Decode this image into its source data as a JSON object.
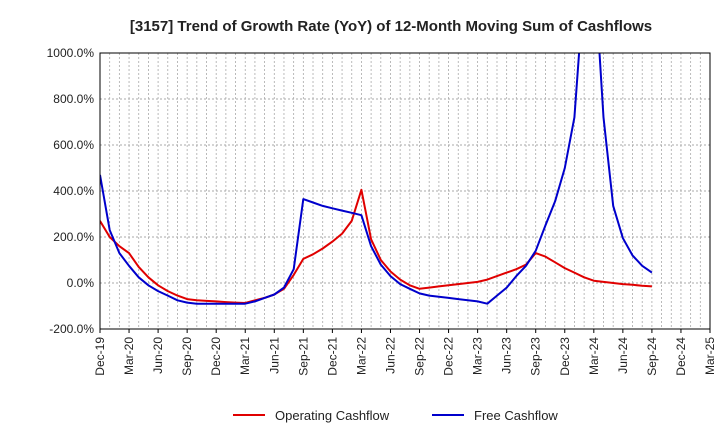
{
  "chart_data": {
    "type": "line",
    "title": "[3157]  Trend of Growth Rate (YoY) of 12-Month Moving Sum of Cashflows",
    "xlabel": "",
    "ylabel": "",
    "ylim": [
      -200,
      1000
    ],
    "y_ticks": [
      "1000.0%",
      "800.0%",
      "600.0%",
      "400.0%",
      "200.0%",
      "0.0%",
      "-200.0%"
    ],
    "y_tick_values": [
      1000,
      800,
      600,
      400,
      200,
      0,
      -200
    ],
    "x_ticks": [
      "Dec-19",
      "Mar-20",
      "Jun-20",
      "Sep-20",
      "Dec-20",
      "Mar-21",
      "Jun-21",
      "Sep-21",
      "Dec-21",
      "Mar-22",
      "Jun-22",
      "Sep-22",
      "Dec-22",
      "Mar-23",
      "Jun-23",
      "Sep-23",
      "Dec-23",
      "Mar-24",
      "Jun-24",
      "Sep-24",
      "Dec-24",
      "Mar-25"
    ],
    "x_start": "Dec-19",
    "x_end": "Mar-25",
    "grid": true,
    "legend_position": "bottom",
    "colors": {
      "operating": "#e00000",
      "free": "#0000cc",
      "grid": "#aaaaaa",
      "axis": "#000000"
    },
    "series": [
      {
        "name": "Operating Cashflow",
        "color": "#e00000",
        "x": [
          "Dec-19",
          "Jan-20",
          "Feb-20",
          "Mar-20",
          "Apr-20",
          "May-20",
          "Jun-20",
          "Jul-20",
          "Aug-20",
          "Sep-20",
          "Oct-20",
          "Nov-20",
          "Dec-20",
          "Jan-21",
          "Feb-21",
          "Mar-21",
          "Apr-21",
          "May-21",
          "Jun-21",
          "Jul-21",
          "Aug-21",
          "Sep-21",
          "Oct-21",
          "Nov-21",
          "Dec-21",
          "Jan-22",
          "Feb-22",
          "Mar-22",
          "Apr-22",
          "May-22",
          "Jun-22",
          "Jul-22",
          "Aug-22",
          "Sep-22",
          "Oct-22",
          "Nov-22",
          "Dec-22",
          "Jan-23",
          "Feb-23",
          "Mar-23",
          "Apr-23",
          "May-23",
          "Jun-23",
          "Jul-23",
          "Aug-23",
          "Sep-23",
          "Oct-23",
          "Nov-23",
          "Dec-23",
          "Jan-24",
          "Feb-24",
          "Mar-24",
          "Apr-24",
          "May-24",
          "Jun-24",
          "Jul-24",
          "Aug-24",
          "Sep-24"
        ],
        "y": [
          270,
          200,
          160,
          130,
          70,
          25,
          -10,
          -35,
          -55,
          -70,
          -75,
          -78,
          -80,
          -83,
          -85,
          -87,
          -75,
          -65,
          -50,
          -25,
          35,
          105,
          125,
          150,
          180,
          215,
          270,
          405,
          190,
          100,
          50,
          15,
          -10,
          -25,
          -20,
          -15,
          -10,
          -5,
          0,
          5,
          15,
          30,
          45,
          60,
          80,
          130,
          115,
          90,
          65,
          45,
          25,
          10,
          5,
          0,
          -5,
          -8,
          -12,
          -15
        ]
      },
      {
        "name": "Free Cashflow",
        "color": "#0000cc",
        "x": [
          "Dec-19",
          "Jan-20",
          "Feb-20",
          "Mar-20",
          "Apr-20",
          "May-20",
          "Jun-20",
          "Jul-20",
          "Aug-20",
          "Sep-20",
          "Oct-20",
          "Nov-20",
          "Dec-20",
          "Jan-21",
          "Feb-21",
          "Mar-21",
          "Apr-21",
          "May-21",
          "Jun-21",
          "Jul-21",
          "Aug-21",
          "Sep-21",
          "Oct-21",
          "Nov-21",
          "Dec-21",
          "Jan-22",
          "Feb-22",
          "Mar-22",
          "Apr-22",
          "May-22",
          "Jun-22",
          "Jul-22",
          "Aug-22",
          "Sep-22",
          "Oct-22",
          "Nov-22",
          "Dec-22",
          "Jan-23",
          "Feb-23",
          "Mar-23",
          "Apr-23",
          "May-23",
          "Jun-23",
          "Jul-23",
          "Aug-23",
          "Sep-23",
          "Oct-23",
          "Nov-23",
          "Dec-23",
          "Jan-24",
          "Feb-24",
          "Mar-24",
          "Apr-24",
          "May-24",
          "Jun-24",
          "Jul-24",
          "Aug-24",
          "Sep-24"
        ],
        "y": [
          470,
          230,
          130,
          75,
          25,
          -10,
          -35,
          -55,
          -75,
          -85,
          -90,
          -90,
          -90,
          -90,
          -90,
          -90,
          -80,
          -65,
          -50,
          -20,
          60,
          365,
          350,
          335,
          325,
          315,
          305,
          295,
          160,
          80,
          30,
          -5,
          -25,
          -45,
          -55,
          -60,
          -65,
          -70,
          -75,
          -80,
          -90,
          -55,
          -20,
          30,
          75,
          140,
          250,
          355,
          500,
          720,
          1300,
          1400,
          720,
          335,
          195,
          120,
          75,
          45
        ]
      }
    ]
  }
}
